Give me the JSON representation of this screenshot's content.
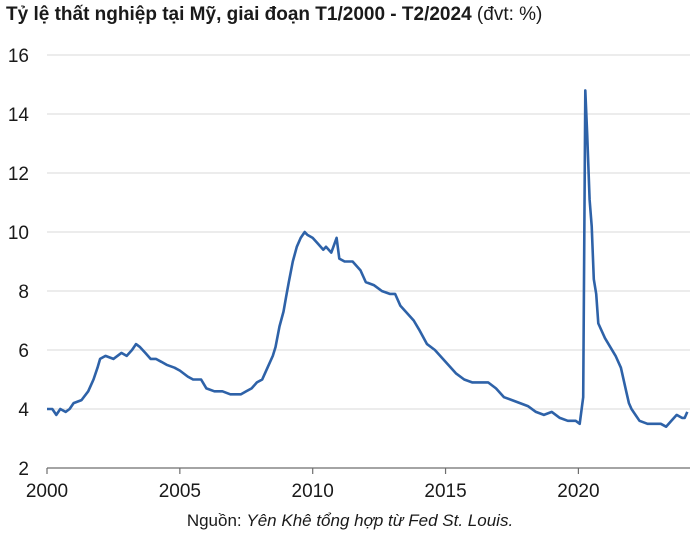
{
  "chart_data": {
    "type": "line",
    "title": "Tỷ lệ thất nghiệp tại Mỹ, giai đoạn T1/2000 - T2/2024",
    "unit": "(đvt: %)",
    "xlabel": "",
    "ylabel": "",
    "xlim": [
      2000,
      2024.2
    ],
    "ylim": [
      2,
      16
    ],
    "x_ticks": [
      "2000",
      "2005",
      "2010",
      "2015",
      "2020"
    ],
    "y_ticks": [
      "2",
      "4",
      "6",
      "8",
      "10",
      "12",
      "14",
      "16"
    ],
    "grid": "horizontal",
    "line_color": "#2e62a8",
    "source_label": "Nguồn:",
    "source_text": "Yên Khê tổng hợp từ Fed St. Louis.",
    "series": [
      {
        "x": [
          2000.0,
          2000.2,
          2000.35,
          2000.5,
          2000.7,
          2000.85,
          2001.0,
          2001.3,
          2001.55,
          2001.75,
          2001.9,
          2002.0,
          2002.2,
          2002.5,
          2002.8,
          2003.0,
          2003.2,
          2003.35,
          2003.5,
          2003.7,
          2003.9,
          2004.1,
          2004.3,
          2004.5,
          2004.8,
          2005.0,
          2005.3,
          2005.5,
          2005.8,
          2006.0,
          2006.3,
          2006.6,
          2006.9,
          2007.1,
          2007.3,
          2007.5,
          2007.7,
          2007.9,
          2008.1,
          2008.3,
          2008.5,
          2008.6,
          2008.75,
          2008.9,
          2009.0,
          2009.1,
          2009.25,
          2009.4,
          2009.55,
          2009.7,
          2009.8,
          2010.0,
          2010.2,
          2010.4,
          2010.5,
          2010.7,
          2010.9,
          2011.0,
          2011.2,
          2011.5,
          2011.8,
          2012.0,
          2012.3,
          2012.6,
          2012.9,
          2013.1,
          2013.3,
          2013.5,
          2013.8,
          2014.0,
          2014.3,
          2014.6,
          2014.9,
          2015.1,
          2015.4,
          2015.7,
          2016.0,
          2016.3,
          2016.6,
          2016.9,
          2017.2,
          2017.5,
          2017.8,
          2018.1,
          2018.4,
          2018.7,
          2019.0,
          2019.3,
          2019.6,
          2019.9,
          2020.05,
          2020.18,
          2020.26,
          2020.33,
          2020.42,
          2020.5,
          2020.58,
          2020.67,
          2020.75,
          2020.85,
          2021.0,
          2021.2,
          2021.4,
          2021.6,
          2021.8,
          2021.9,
          2022.0,
          2022.3,
          2022.6,
          2022.9,
          2023.1,
          2023.3,
          2023.5,
          2023.7,
          2023.9,
          2024.0,
          2024.1
        ],
        "y": [
          4.0,
          4.0,
          3.8,
          4.0,
          3.9,
          4.0,
          4.2,
          4.3,
          4.6,
          5.0,
          5.4,
          5.7,
          5.8,
          5.7,
          5.9,
          5.8,
          6.0,
          6.2,
          6.1,
          5.9,
          5.7,
          5.7,
          5.6,
          5.5,
          5.4,
          5.3,
          5.1,
          5.0,
          5.0,
          4.7,
          4.6,
          4.6,
          4.5,
          4.5,
          4.5,
          4.6,
          4.7,
          4.9,
          5.0,
          5.4,
          5.8,
          6.1,
          6.8,
          7.3,
          7.8,
          8.3,
          9.0,
          9.5,
          9.8,
          10.0,
          9.9,
          9.8,
          9.6,
          9.4,
          9.5,
          9.3,
          9.8,
          9.1,
          9.0,
          9.0,
          8.7,
          8.3,
          8.2,
          8.0,
          7.9,
          7.9,
          7.5,
          7.3,
          7.0,
          6.7,
          6.2,
          6.0,
          5.7,
          5.5,
          5.2,
          5.0,
          4.9,
          4.9,
          4.9,
          4.7,
          4.4,
          4.3,
          4.2,
          4.1,
          3.9,
          3.8,
          3.9,
          3.7,
          3.6,
          3.6,
          3.5,
          4.4,
          14.8,
          13.3,
          11.1,
          10.2,
          8.4,
          7.9,
          6.9,
          6.7,
          6.4,
          6.1,
          5.8,
          5.4,
          4.6,
          4.2,
          4.0,
          3.6,
          3.5,
          3.5,
          3.5,
          3.4,
          3.6,
          3.8,
          3.7,
          3.7,
          3.9
        ]
      }
    ]
  }
}
